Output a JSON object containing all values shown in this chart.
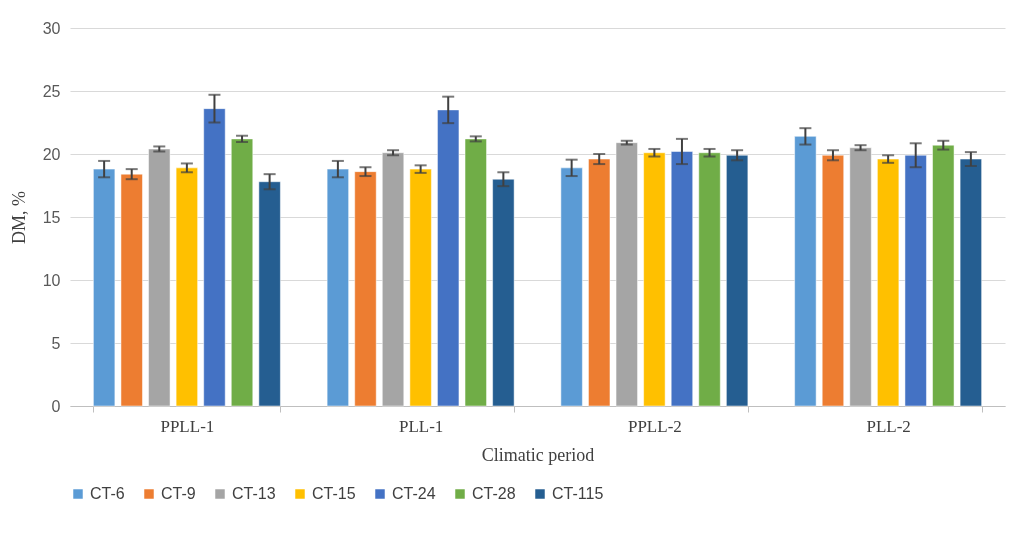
{
  "chart_data": {
    "type": "bar",
    "xlabel": "Climatic period",
    "ylabel": "DM, %",
    "categories": [
      "PPLL-1",
      "PLL-1",
      "PPLL-2",
      "PLL-2"
    ],
    "series": [
      {
        "name": "CT-6",
        "color": "#5b9bd5",
        "values": [
          18.8,
          18.8,
          18.9,
          21.4
        ],
        "errors": [
          0.65,
          0.65,
          0.65,
          0.65
        ]
      },
      {
        "name": "CT-9",
        "color": "#ed7d31",
        "values": [
          18.4,
          18.6,
          19.6,
          19.9
        ],
        "errors": [
          0.4,
          0.35,
          0.4,
          0.4
        ]
      },
      {
        "name": "CT-13",
        "color": "#a5a5a5",
        "values": [
          20.4,
          20.1,
          20.9,
          20.5
        ],
        "errors": [
          0.2,
          0.2,
          0.15,
          0.2
        ]
      },
      {
        "name": "CT-15",
        "color": "#ffc000",
        "values": [
          18.9,
          18.8,
          20.1,
          19.6
        ],
        "errors": [
          0.35,
          0.3,
          0.3,
          0.3
        ]
      },
      {
        "name": "CT-24",
        "color": "#4472c4",
        "values": [
          23.6,
          23.5,
          20.2,
          19.9
        ],
        "errors": [
          1.1,
          1.05,
          1.0,
          0.95
        ]
      },
      {
        "name": "CT-28",
        "color": "#70ad47",
        "values": [
          21.2,
          21.2,
          20.1,
          20.7
        ],
        "errors": [
          0.25,
          0.2,
          0.3,
          0.35
        ]
      },
      {
        "name": "CT-115",
        "color": "#255e91",
        "values": [
          17.8,
          18.0,
          19.9,
          19.6
        ],
        "errors": [
          0.6,
          0.55,
          0.4,
          0.55
        ]
      }
    ],
    "ylim": [
      0,
      30
    ],
    "yticks": [
      0,
      5,
      10,
      15,
      20,
      25,
      30
    ],
    "grid": "y",
    "legend": "bottom"
  }
}
